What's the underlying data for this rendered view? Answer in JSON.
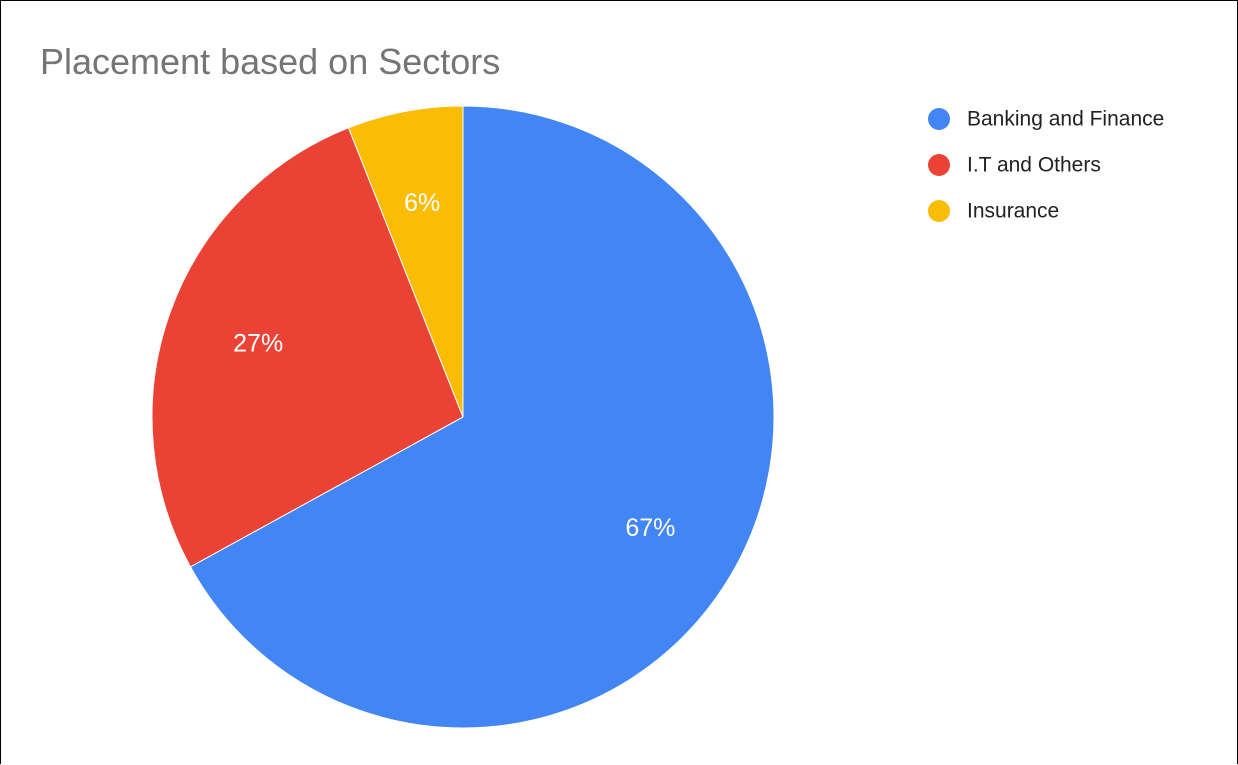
{
  "chart_data": {
    "type": "pie",
    "title": "Placement based on Sectors",
    "categories": [
      "Banking and Finance",
      "I.T and Others",
      "Insurance"
    ],
    "values": [
      67,
      27,
      6
    ],
    "labels": [
      "67%",
      "27%",
      "6%"
    ],
    "colors": [
      "#4285f4",
      "#ea4335",
      "#fbbc04"
    ],
    "start_angle": "12 o'clock",
    "direction": "clockwise",
    "legend_position": "right"
  }
}
